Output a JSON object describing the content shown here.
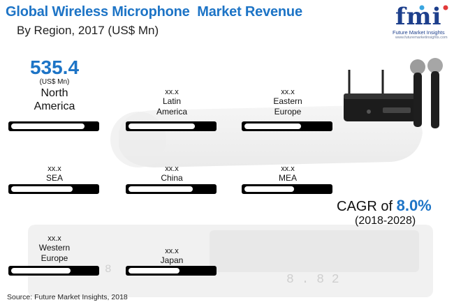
{
  "title": "Global Wireless Microphone  Market Revenue",
  "subtitle": "By Region, 2017 (US$ Mn)",
  "logo": {
    "mark": "fmi",
    "name": "Future Market Insights",
    "url": "www.futuremarketinsights.com"
  },
  "cagr": {
    "label": "CAGR of",
    "value": "8.0%",
    "period": "(2018-2028)"
  },
  "source": "Source: Future Market Insights, 2018",
  "colors": {
    "accent": "#1d74c6",
    "bar": "#000000",
    "logo": "#1d3f8c"
  },
  "icons": {
    "product": "wireless-microphone-receiver-icon",
    "background": "microphone-background-illustration"
  },
  "chart_data": {
    "type": "bar",
    "title": "Global Wireless Microphone  Market Revenue",
    "subtitle": "By Region, 2017 (US$ Mn)",
    "highlight": {
      "value": "535.4",
      "unit": "(US$ Mn)",
      "region": "North America"
    },
    "regions": [
      {
        "name": "North America",
        "value": "535.4",
        "share": 0.86
      },
      {
        "name": "Latin America",
        "value": "xx.x",
        "share": 0.78
      },
      {
        "name": "Eastern Europe",
        "value": "xx.x",
        "share": 0.66
      },
      {
        "name": "SEA",
        "value": "xx.x",
        "share": 0.72
      },
      {
        "name": "China",
        "value": "xx.x",
        "share": 0.75
      },
      {
        "name": "MEA",
        "value": "xx.x",
        "share": 0.58
      },
      {
        "name": "Western Europe",
        "value": "xx.x",
        "share": 0.7
      },
      {
        "name": "Japan",
        "value": "xx.x",
        "share": 0.6
      }
    ],
    "name_lines": [
      [
        "North",
        "America"
      ],
      [
        "Latin",
        "America"
      ],
      [
        "Eastern",
        "Europe"
      ],
      [
        "SEA"
      ],
      [
        "China"
      ],
      [
        "MEA"
      ],
      [
        "Western",
        "Europe"
      ],
      [
        "Japan"
      ]
    ]
  }
}
